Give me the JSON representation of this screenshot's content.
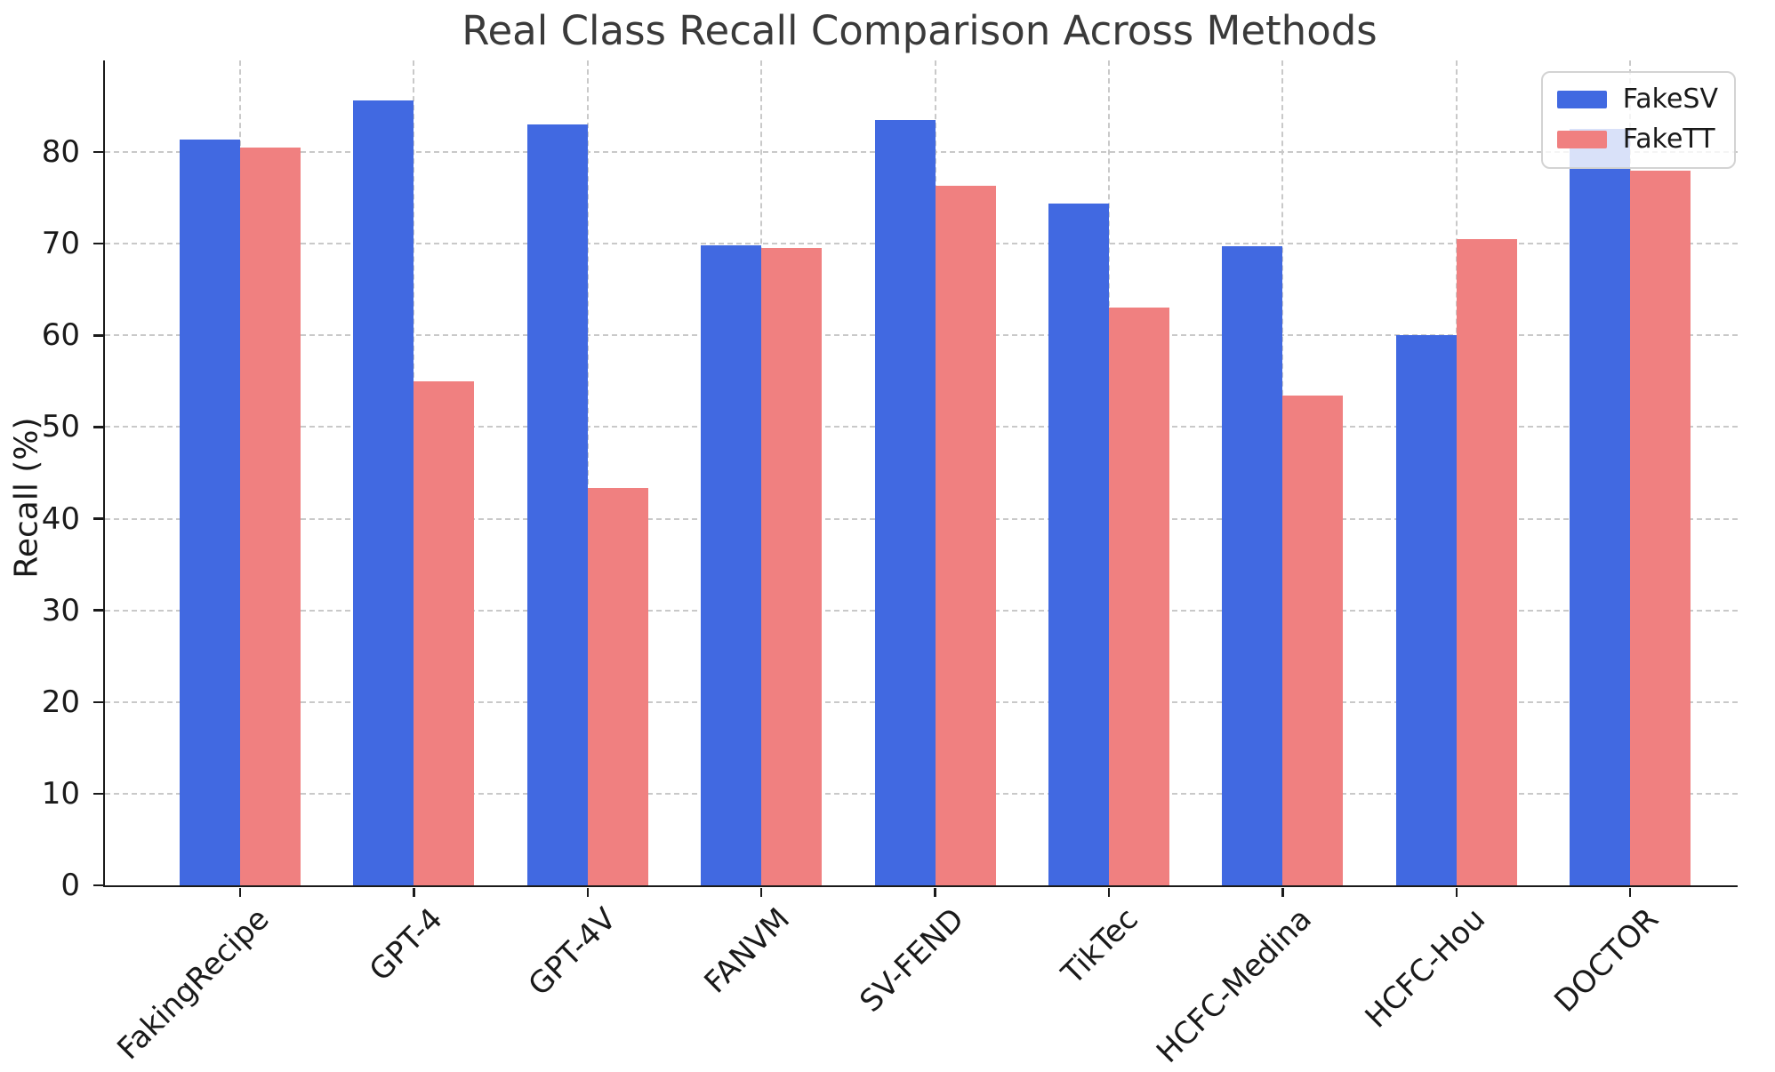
{
  "chart_data": {
    "type": "bar",
    "title": "Real Class Recall Comparison Across Methods",
    "xlabel": "",
    "ylabel": "Recall (%)",
    "categories": [
      "FakingRecipe",
      "GPT-4",
      "GPT-4V",
      "FANVM",
      "SV-FEND",
      "TikTec",
      "HCFC-Medina",
      "HCFC-Hou",
      "DOCTOR"
    ],
    "series": [
      {
        "name": "FakeSV",
        "color": "#4169E1",
        "values": [
          81.4,
          85.6,
          83.0,
          69.8,
          83.5,
          74.4,
          69.7,
          60.0,
          82.5
        ]
      },
      {
        "name": "FakeTT",
        "color": "#F08080",
        "values": [
          80.5,
          55.0,
          43.4,
          69.5,
          76.3,
          63.0,
          53.4,
          70.5,
          78.0
        ]
      }
    ],
    "ylim": [
      0,
      90
    ],
    "yticks": [
      0,
      10,
      20,
      30,
      40,
      50,
      60,
      70,
      80
    ],
    "grid": true,
    "grid_style": "dashed",
    "legend_position": "upper right"
  },
  "colors": {
    "fakesv_bar": "#4169E1",
    "fakett_bar": "#F08080",
    "gridline": "#c9c9c9",
    "axis_text": "#1a1a1a",
    "title_text": "#3a3a3a",
    "legend_border": "#d3d3d3",
    "background": "#ffffff"
  }
}
